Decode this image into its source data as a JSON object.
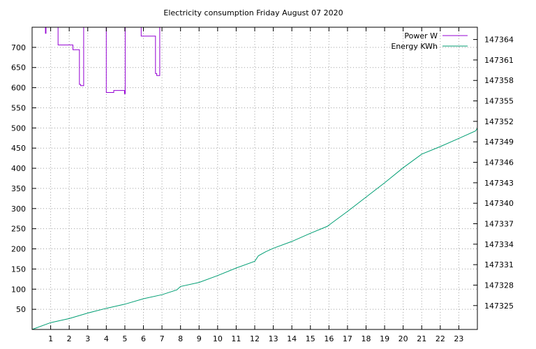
{
  "chart_data": {
    "type": "line",
    "title": "Electricity consumption Friday August 07 2020",
    "x": {
      "label": "",
      "range": [
        0,
        24
      ],
      "ticks": [
        "1",
        "2",
        "3",
        "4",
        "5",
        "6",
        "7",
        "8",
        "9",
        "10",
        "11",
        "12",
        "13",
        "14",
        "15",
        "16",
        "17",
        "18",
        "19",
        "20",
        "21",
        "22",
        "23"
      ]
    },
    "y_left": {
      "label": "",
      "range": [
        0,
        750
      ],
      "ticks": [
        "50",
        "100",
        "150",
        "200",
        "250",
        "300",
        "350",
        "400",
        "450",
        "500",
        "550",
        "600",
        "650",
        "700"
      ]
    },
    "y_right": {
      "label": "",
      "range": [
        147321.5,
        147365.8
      ],
      "ticks": [
        "147325",
        "147328",
        "147331",
        "147334",
        "147337",
        "147340",
        "147343",
        "147346",
        "147349",
        "147352",
        "147355",
        "147358",
        "147361",
        "147364"
      ]
    },
    "grid": true,
    "legend_position": "top-right",
    "series": [
      {
        "name": "Power W",
        "axis": "left",
        "color": "#9400d3",
        "step": true,
        "points": [
          [
            0.65,
            750
          ],
          [
            0.72,
            735
          ],
          [
            0.75,
            750
          ],
          [
            1.4,
            706
          ],
          [
            2.2,
            694
          ],
          [
            2.55,
            608
          ],
          [
            2.62,
            605
          ],
          [
            2.78,
            750
          ],
          [
            3.95,
            750
          ],
          [
            4.0,
            588
          ],
          [
            4.4,
            593
          ],
          [
            4.98,
            585
          ],
          [
            5.02,
            750
          ],
          [
            5.55,
            750
          ],
          [
            5.88,
            728
          ],
          [
            6.65,
            635
          ],
          [
            6.72,
            630
          ],
          [
            6.88,
            750
          ],
          [
            7.1,
            750
          ]
        ]
      },
      {
        "name": "Energy KWh",
        "axis": "right",
        "color": "#009e73",
        "step": false,
        "points": [
          [
            0.0,
            147321.5
          ],
          [
            1.0,
            147322.5
          ],
          [
            2.0,
            147323.1
          ],
          [
            3.0,
            147323.9
          ],
          [
            4.0,
            147324.6
          ],
          [
            5.0,
            147325.2
          ],
          [
            6.0,
            147326.0
          ],
          [
            7.0,
            147326.6
          ],
          [
            7.8,
            147327.3
          ],
          [
            8.0,
            147327.8
          ],
          [
            9.0,
            147328.4
          ],
          [
            10.0,
            147329.4
          ],
          [
            11.0,
            147330.5
          ],
          [
            12.0,
            147331.5
          ],
          [
            12.2,
            147332.3
          ],
          [
            12.6,
            147332.9
          ],
          [
            13.0,
            147333.4
          ],
          [
            14.0,
            147334.4
          ],
          [
            15.0,
            147335.6
          ],
          [
            15.9,
            147336.6
          ],
          [
            16.0,
            147336.8
          ],
          [
            17.0,
            147338.8
          ],
          [
            18.0,
            147340.9
          ],
          [
            19.0,
            147343.0
          ],
          [
            20.0,
            147345.2
          ],
          [
            21.0,
            147347.2
          ],
          [
            22.0,
            147348.3
          ],
          [
            23.0,
            147349.5
          ],
          [
            23.9,
            147350.6
          ],
          [
            24.0,
            147351.0
          ]
        ]
      }
    ]
  }
}
